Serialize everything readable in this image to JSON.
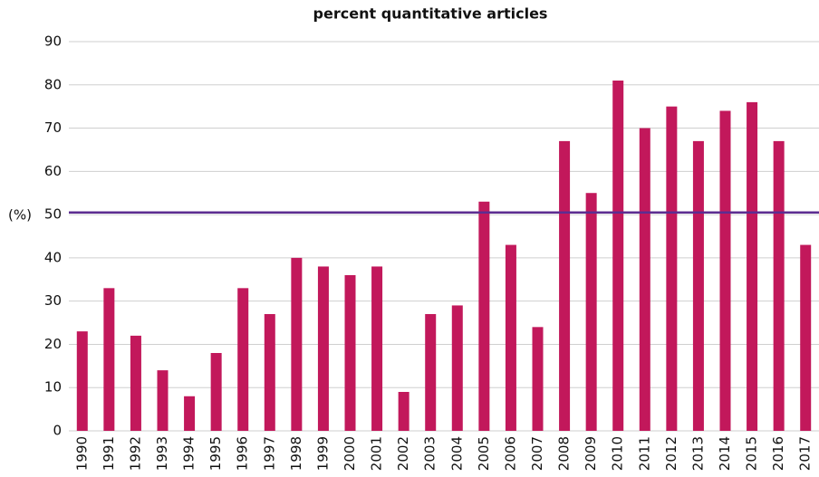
{
  "chart_data": {
    "type": "bar",
    "title": "percent quantitative articles",
    "y_label": "(%)",
    "categories": [
      "1990",
      "1991",
      "1992",
      "1993",
      "1994",
      "1995",
      "1996",
      "1997",
      "1998",
      "1999",
      "2000",
      "2001",
      "2002",
      "2003",
      "2004",
      "2005",
      "2006",
      "2007",
      "2008",
      "2009",
      "2010",
      "2011",
      "2012",
      "2013",
      "2014",
      "2015",
      "2016",
      "2017"
    ],
    "values": [
      23,
      33,
      22,
      14,
      8,
      18,
      33,
      27,
      40,
      38,
      36,
      38,
      9,
      27,
      29,
      53,
      43,
      24,
      67,
      55,
      81,
      70,
      75,
      67,
      74,
      76,
      67,
      43
    ],
    "color": "#c2185b",
    "ylim": [
      0,
      90
    ],
    "yticks": [
      0,
      10,
      20,
      30,
      40,
      50,
      60,
      70,
      80,
      90
    ],
    "grid": true,
    "reference_line": {
      "value": 50.5,
      "color": "#5c2d91"
    }
  }
}
